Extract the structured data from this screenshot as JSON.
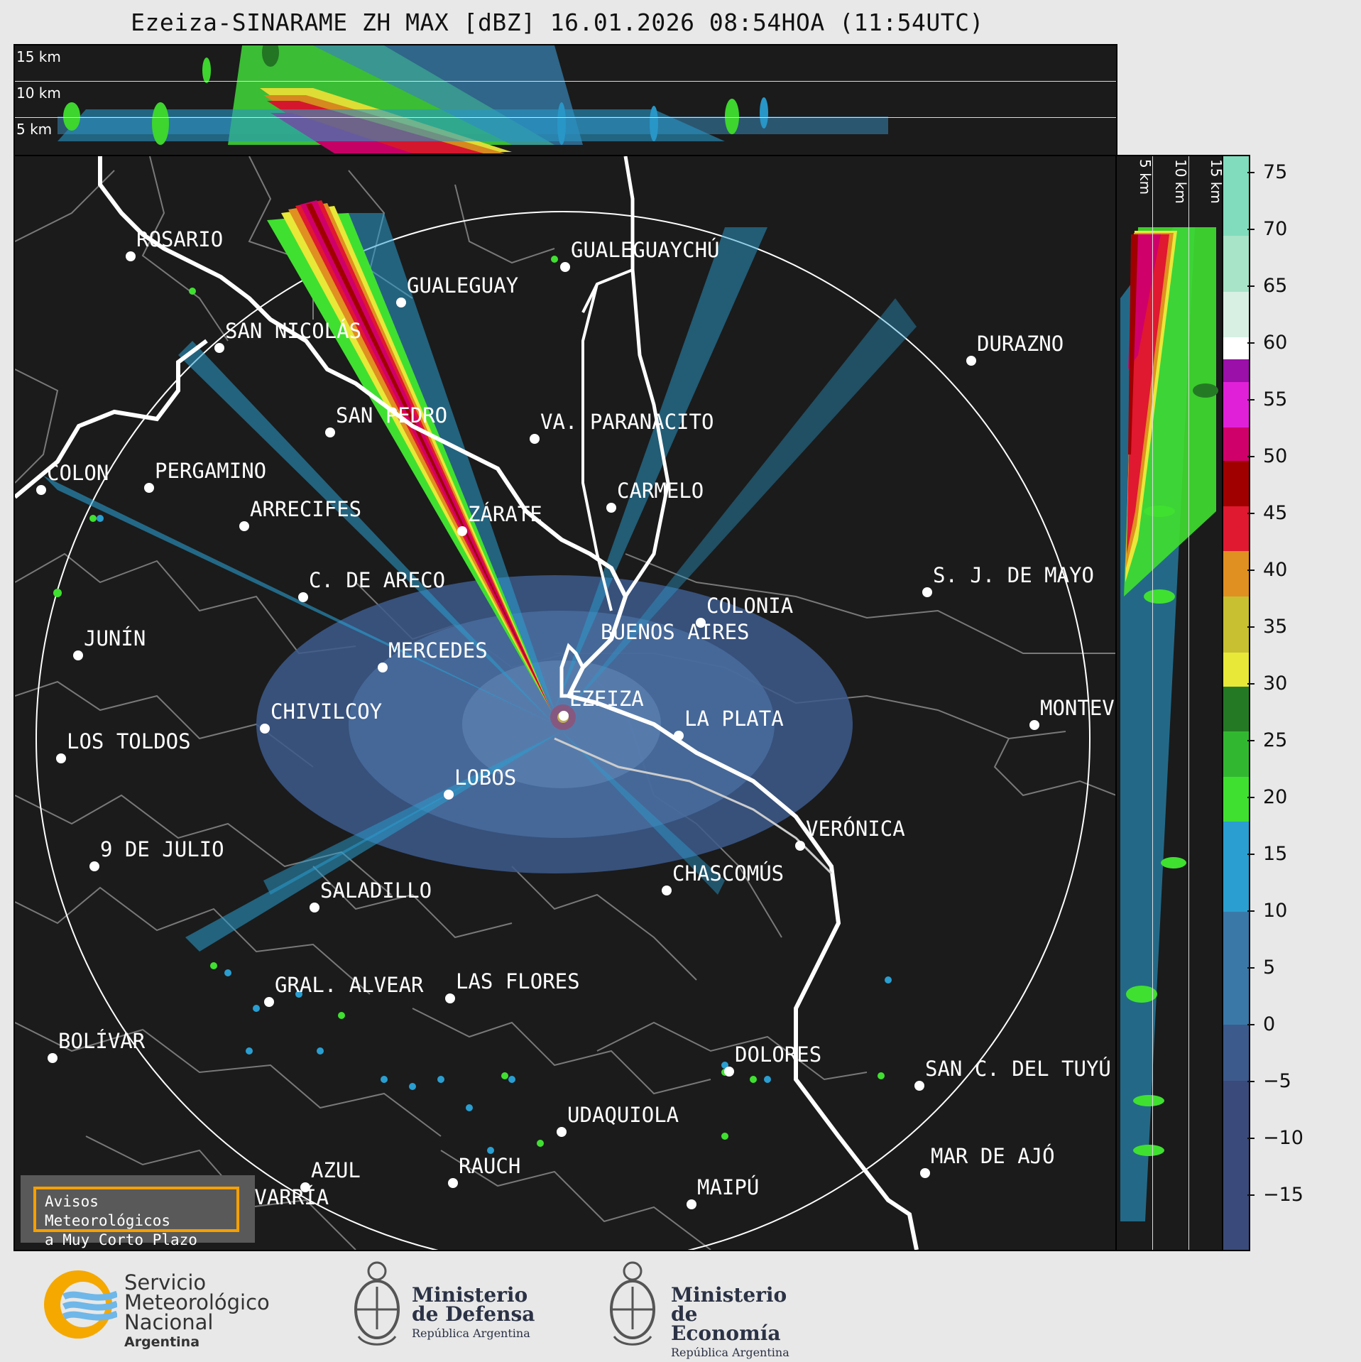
{
  "title": "Ezeiza-SINARAME ZH MAX [dBZ] 16.01.2026 08:54HOA (11:54UTC)",
  "height_labels": {
    "top": [
      "15 km",
      "10 km",
      "5 km"
    ],
    "right": [
      "5 km",
      "10 km",
      "15 km"
    ]
  },
  "colorbar": {
    "ticks": [
      "75",
      "70",
      "65",
      "60",
      "55",
      "50",
      "45",
      "40",
      "35",
      "30",
      "25",
      "20",
      "15",
      "10",
      "5",
      "0",
      "−5",
      "−10",
      "−15"
    ],
    "scale_min": -20,
    "scale_max": 77,
    "bands": [
      {
        "from": -20,
        "to": -5,
        "color": "#3a4a7a"
      },
      {
        "from": -5,
        "to": 0,
        "color": "#3c5a8c"
      },
      {
        "from": 0,
        "to": 10,
        "color": "#3a78a8"
      },
      {
        "from": 10,
        "to": 18,
        "color": "#2a9ed0"
      },
      {
        "from": 18,
        "to": 22,
        "color": "#40e030"
      },
      {
        "from": 22,
        "to": 26,
        "color": "#32b830"
      },
      {
        "from": 26,
        "to": 30,
        "color": "#247a24"
      },
      {
        "from": 30,
        "to": 33,
        "color": "#e8e838"
      },
      {
        "from": 33,
        "to": 38,
        "color": "#c8c030"
      },
      {
        "from": 38,
        "to": 42,
        "color": "#e09020"
      },
      {
        "from": 42,
        "to": 46,
        "color": "#e01830"
      },
      {
        "from": 46,
        "to": 50,
        "color": "#a00000"
      },
      {
        "from": 50,
        "to": 53,
        "color": "#d0006a"
      },
      {
        "from": 53,
        "to": 57,
        "color": "#e020d8"
      },
      {
        "from": 57,
        "to": 59,
        "color": "#9a10a8"
      },
      {
        "from": 59,
        "to": 61,
        "color": "#ffffff"
      },
      {
        "from": 61,
        "to": 65,
        "color": "#d8f0e4"
      },
      {
        "from": 65,
        "to": 70,
        "color": "#a8e4c8"
      },
      {
        "from": 70,
        "to": 77,
        "color": "#80dcbc"
      }
    ]
  },
  "cities": [
    {
      "name": "ROSARIO"
    },
    {
      "name": "GUALEGUAYCHÚ"
    },
    {
      "name": "GUALEGUAY"
    },
    {
      "name": "SAN NICOLÁS"
    },
    {
      "name": "DURAZNO"
    },
    {
      "name": "SAN PEDRO"
    },
    {
      "name": "VA. PARANACITO"
    },
    {
      "name": "COLON"
    },
    {
      "name": "PERGAMINO"
    },
    {
      "name": "CARMELO"
    },
    {
      "name": "ARRECIFES"
    },
    {
      "name": "ZÁRATE"
    },
    {
      "name": "S. J. DE MAYO"
    },
    {
      "name": "C. DE ARECO"
    },
    {
      "name": "COLONIA"
    },
    {
      "name": "JUNÍN"
    },
    {
      "name": "BUENOS AIRES"
    },
    {
      "name": "MERCEDES"
    },
    {
      "name": "EZEIZA"
    },
    {
      "name": "MONTEVIDEO"
    },
    {
      "name": "CHIVILCOY"
    },
    {
      "name": "LA PLATA"
    },
    {
      "name": "LOS TOLDOS"
    },
    {
      "name": "LOBOS"
    },
    {
      "name": "VERÓNICA"
    },
    {
      "name": "9 DE JULIO"
    },
    {
      "name": "CHASCOMÚS"
    },
    {
      "name": "SALADILLO"
    },
    {
      "name": "GRAL. ALVEAR"
    },
    {
      "name": "LAS FLORES"
    },
    {
      "name": "BOLÍVAR"
    },
    {
      "name": "DOLORES"
    },
    {
      "name": "SAN C. DEL TUYÚ"
    },
    {
      "name": "UDAQUIOLA"
    },
    {
      "name": "AZUL"
    },
    {
      "name": "RAUCH"
    },
    {
      "name": "MAR DE AJÓ"
    },
    {
      "name": "OLAVARRÍA"
    },
    {
      "name": "MAIPÚ"
    }
  ],
  "avisos": {
    "line1": "Avisos Meteorológicos",
    "line2": "a Muy Corto Plazo"
  },
  "logos": {
    "smn": {
      "line1": "Servicio",
      "line2": "Meteorológico",
      "line3": "Nacional",
      "sub": "Argentina"
    },
    "defensa": {
      "line1": "Ministerio",
      "line2": "de Defensa",
      "sub": "República Argentina"
    },
    "economia": {
      "line1": "Ministerio",
      "line2": "de Economía",
      "sub": "República Argentina"
    }
  }
}
